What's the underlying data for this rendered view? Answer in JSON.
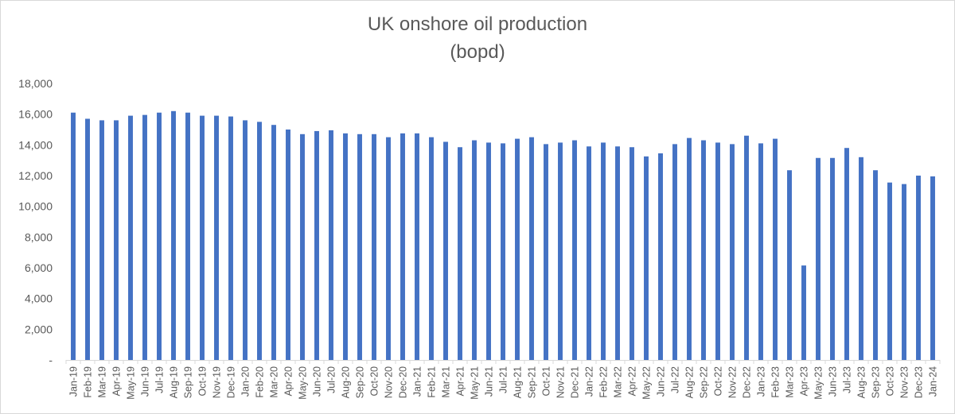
{
  "chart_data": {
    "type": "bar",
    "title": "UK onshore oil production",
    "subtitle": "(bopd)",
    "xlabel": "",
    "ylabel": "",
    "ylim": [
      0,
      18000
    ],
    "yticks": [
      "-",
      "2,000",
      "4,000",
      "6,000",
      "8,000",
      "10,000",
      "12,000",
      "14,000",
      "16,000",
      "18,000"
    ],
    "grid": false,
    "legend": "none",
    "bar_color": "#4472c4",
    "categories": [
      "Jan-19",
      "Feb-19",
      "Mar-19",
      "Apr-19",
      "May-19",
      "Jun-19",
      "Jul-19",
      "Aug-19",
      "Sep-19",
      "Oct-19",
      "Nov-19",
      "Dec-19",
      "Jan-20",
      "Feb-20",
      "Mar-20",
      "Apr-20",
      "May-20",
      "Jun-20",
      "Jul-20",
      "Aug-20",
      "Sep-20",
      "Oct-20",
      "Nov-20",
      "Dec-20",
      "Jan-21",
      "Feb-21",
      "Mar-21",
      "Apr-21",
      "May-21",
      "Jun-21",
      "Jul-21",
      "Aug-21",
      "Sep-21",
      "Oct-21",
      "Nov-21",
      "Dec-21",
      "Jan-22",
      "Feb-22",
      "Mar-22",
      "Apr-22",
      "May-22",
      "Jun-22",
      "Jul-22",
      "Aug-22",
      "Sep-22",
      "Oct-22",
      "Nov-22",
      "Dec-22",
      "Jan-23",
      "Feb-23",
      "Mar-23",
      "Apr-23",
      "May-23",
      "Jun-23",
      "Jul-23",
      "Aug-23",
      "Sep-23",
      "Oct-23",
      "Nov-23",
      "Dec-23",
      "Jan-24"
    ],
    "values": [
      16100,
      15700,
      15600,
      15600,
      15900,
      15950,
      16100,
      16200,
      16100,
      15900,
      15900,
      15850,
      15600,
      15500,
      15300,
      15000,
      14700,
      14900,
      14950,
      14750,
      14700,
      14700,
      14500,
      14750,
      14750,
      14500,
      14200,
      13850,
      14300,
      14150,
      14100,
      14400,
      14500,
      14050,
      14150,
      14300,
      13900,
      14150,
      13900,
      13850,
      13250,
      13450,
      14050,
      14450,
      14300,
      14150,
      14050,
      14600,
      14100,
      14400,
      12350,
      6150,
      13150,
      13150,
      13800,
      13200,
      12350,
      11550,
      11450,
      12000,
      11950
    ]
  }
}
